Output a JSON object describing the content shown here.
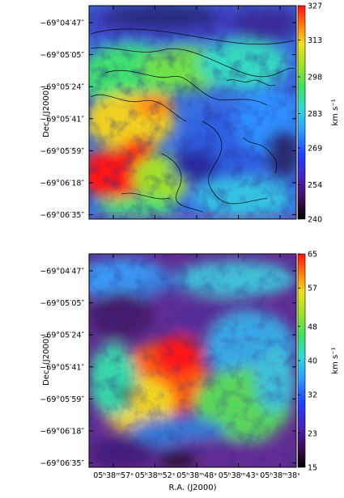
{
  "chart_data": [
    {
      "type": "heatmap",
      "title": "",
      "xlabel": "",
      "ylabel": "Dec. (J2000)",
      "y_ticks": [
        "−69°04′47″",
        "−69°05′05″",
        "−69°05′24″",
        "−69°05′41″",
        "−69°05′59″",
        "−69°06′18″",
        "−69°06′35″"
      ],
      "x_ticks": [],
      "colorbar": {
        "label": "km s⁻¹",
        "ticks": [
          327,
          313,
          298,
          283,
          269,
          254,
          240
        ],
        "range": [
          240,
          327
        ],
        "colormap": "rainbow (black-purple-blue-cyan-green-yellow-red)"
      },
      "contours": "black contours overlaid",
      "map": "velocity field: high values (red, ~327) in lower-left, low values (blue/purple, ~250) on right and top-right, green/cyan intermediate band"
    },
    {
      "type": "heatmap",
      "title": "",
      "xlabel": "R.A. (J2000)",
      "ylabel": "Dec. (J2000)",
      "y_ticks": [
        "−69°04′47″",
        "−69°05′05″",
        "−69°05′24″",
        "−69°05′41″",
        "−69°05′59″",
        "−69°06′18″",
        "−69°06′35″"
      ],
      "x_ticks": [
        "05ʰ38ᵐ57ˢ",
        "05ʰ38ᵐ52ˢ",
        "05ʰ38ᵐ48ˢ",
        "05ʰ38ᵐ43ˢ",
        "05ʰ38ᵐ38ˢ"
      ],
      "colorbar": {
        "label": "km s⁻¹",
        "ticks": [
          65,
          57,
          48,
          40,
          32,
          23,
          15
        ],
        "range": [
          15,
          65
        ],
        "colormap": "rainbow (black-purple-blue-cyan-green-yellow-red)"
      },
      "map": "velocity dispersion: high values (red, ~60) in central-left region, low values (purple, ~20) at top and bottom, cyan/green elsewhere"
    }
  ]
}
